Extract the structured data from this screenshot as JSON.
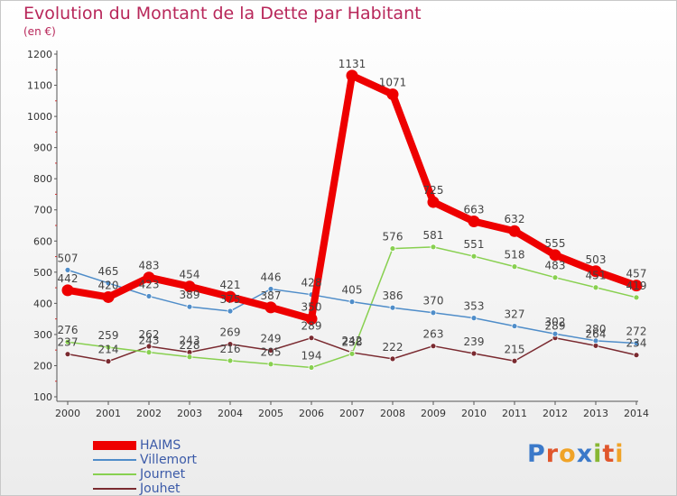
{
  "title": "Evolution du Montant de la Dette par Habitant",
  "subtitle": "(en €)",
  "logo": {
    "text": "Proxiti",
    "letter_colors": [
      "#3b79c9",
      "#e0562c",
      "#f0a327",
      "#3b79c9",
      "#88b733",
      "#e0562c",
      "#f0a327"
    ]
  },
  "chart_data": {
    "type": "line",
    "x": [
      "2000",
      "2001",
      "2002",
      "2003",
      "2004",
      "2005",
      "2006",
      "2007",
      "2008",
      "2009",
      "2010",
      "2011",
      "2012",
      "2013",
      "2014"
    ],
    "ylim": [
      100,
      1200
    ],
    "yticks": [
      "100",
      "200",
      "300",
      "400",
      "500",
      "600",
      "700",
      "800",
      "900",
      "1000",
      "1100",
      "1200"
    ],
    "grid": false,
    "legend_position": "bottom-left",
    "series": [
      {
        "name": "HAIMS",
        "color": "#ee0000",
        "values": [
          442,
          420,
          483,
          454,
          421,
          387,
          350,
          1131,
          1071,
          725,
          663,
          632,
          555,
          503,
          457
        ],
        "labels": [
          "442",
          "420",
          "483",
          "454",
          "421",
          "387",
          "350",
          "1131",
          "1071",
          "725",
          "663",
          "632",
          "555",
          "503",
          "457"
        ]
      },
      {
        "name": "Villemort",
        "color": "#4f8dc9",
        "values": [
          507,
          465,
          423,
          389,
          375,
          446,
          428,
          405,
          386,
          370,
          353,
          327,
          302,
          280,
          272
        ],
        "labels": [
          "507",
          "465",
          "423",
          "389",
          "375",
          "446",
          "428",
          "405",
          "386",
          "370",
          "353",
          "327",
          "302",
          "280",
          "272"
        ]
      },
      {
        "name": "Journet",
        "color": "#88d050",
        "values": [
          276,
          259,
          243,
          228,
          216,
          205,
          194,
          238,
          576,
          581,
          551,
          518,
          483,
          451,
          419
        ],
        "labels": [
          "276",
          "259",
          "243",
          "228",
          "216",
          "205",
          "194",
          "238",
          "576",
          "581",
          "551",
          "518",
          "483",
          "451",
          "419"
        ]
      },
      {
        "name": "Jouhet",
        "color": "#7a2a30",
        "values": [
          237,
          214,
          262,
          243,
          269,
          249,
          289,
          242,
          222,
          263,
          239,
          215,
          289,
          264,
          234
        ],
        "labels": [
          "237",
          "214",
          "262",
          "243",
          "269",
          "249",
          "289",
          "242",
          "222",
          "263",
          "239",
          "215",
          "289",
          "264",
          "234"
        ]
      }
    ]
  }
}
